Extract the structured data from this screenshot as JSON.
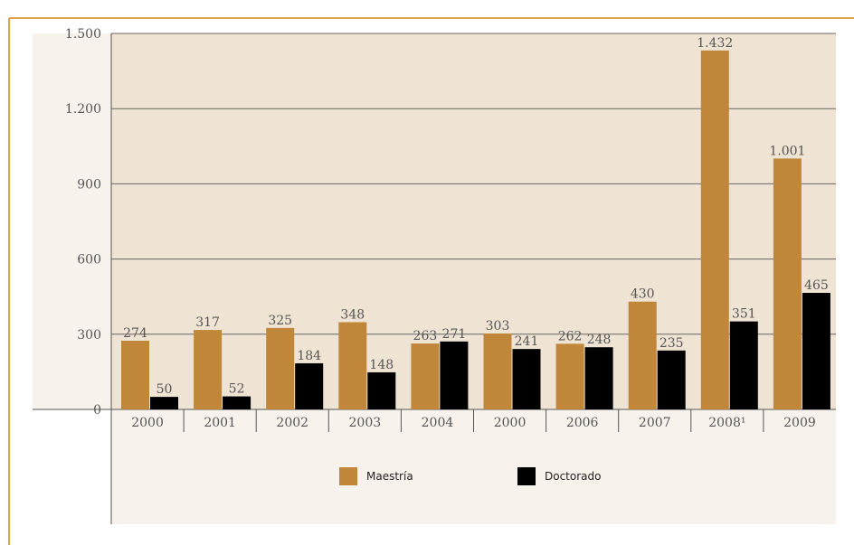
{
  "chart_data": {
    "type": "bar",
    "categories": [
      "2000",
      "2001",
      "2002",
      "2003",
      "2004",
      "2000",
      "2006",
      "2007",
      "2008¹",
      "2009"
    ],
    "series": [
      {
        "name": "Maestría",
        "color": "#c0873a",
        "values": [
          274,
          317,
          325,
          348,
          263,
          303,
          262,
          430,
          1432,
          1001
        ],
        "value_labels": [
          "274",
          "317",
          "325",
          "348",
          "263",
          "303",
          "262",
          "430",
          "1.432",
          "1.001"
        ]
      },
      {
        "name": "Doctorado",
        "color": "#000000",
        "values": [
          50,
          52,
          184,
          148,
          271,
          241,
          248,
          235,
          351,
          465
        ],
        "value_labels": [
          "50",
          "52",
          "184",
          "148",
          "271",
          "241",
          "248",
          "235",
          "351",
          "465"
        ]
      }
    ],
    "ylim": [
      0,
      1500
    ],
    "yticks": [
      0,
      300,
      600,
      900,
      {
        "value": 1200,
        "label": "1.200"
      },
      {
        "value": 1500,
        "label": "1.500"
      }
    ],
    "grid": true
  }
}
